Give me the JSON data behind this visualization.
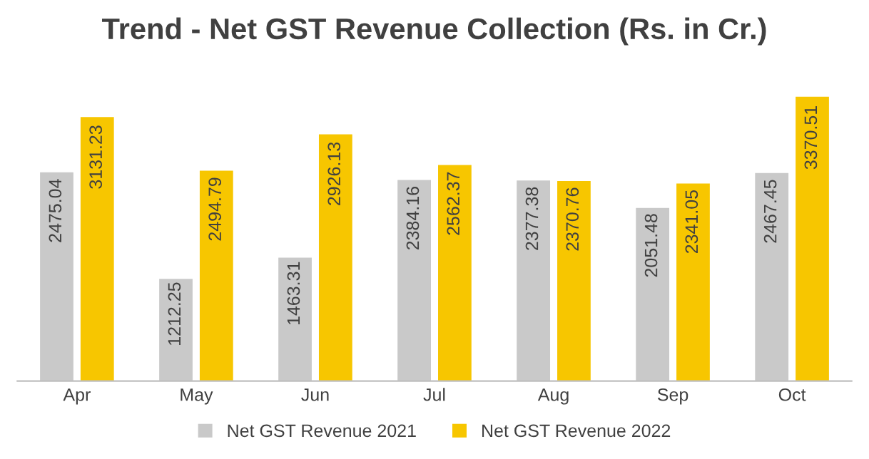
{
  "chart_data": {
    "type": "bar",
    "title": "Trend - Net GST Revenue Collection (Rs. in Cr.)",
    "categories": [
      "Apr",
      "May",
      "Jun",
      "Jul",
      "Aug",
      "Sep",
      "Oct"
    ],
    "series": [
      {
        "name": "Net GST Revenue 2021",
        "color": "#c9c9c9",
        "values": [
          2475.04,
          1212.25,
          1463.31,
          2384.16,
          2377.38,
          2051.48,
          2467.45
        ]
      },
      {
        "name": "Net GST Revenue 2022",
        "color": "#f7c600",
        "values": [
          3131.23,
          2494.79,
          2926.13,
          2562.37,
          2370.76,
          2341.05,
          3370.51
        ]
      }
    ],
    "data_labels": true,
    "legend": "bottom",
    "grid": false,
    "tick_labels": "x"
  }
}
